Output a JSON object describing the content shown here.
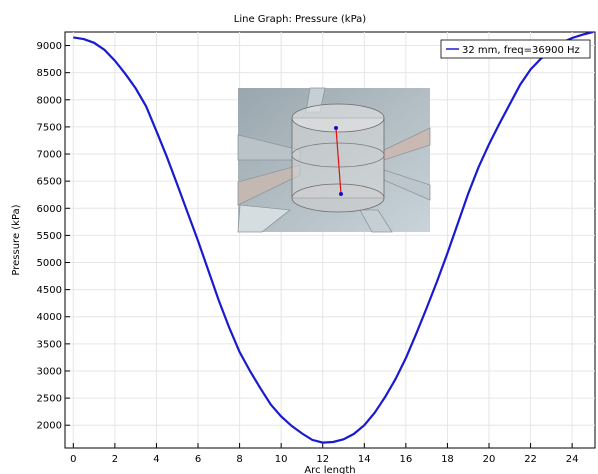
{
  "chart_data": {
    "type": "line",
    "title": "Line Graph: Pressure (kPa)",
    "xlabel": "Arc length",
    "ylabel": "Pressure (kPa)",
    "xlim": [
      -0.4,
      25.1
    ],
    "ylim": [
      1580,
      9250
    ],
    "x_ticks": [
      0,
      2,
      4,
      6,
      8,
      10,
      12,
      14,
      16,
      18,
      20,
      22,
      24
    ],
    "y_ticks": [
      2000,
      2500,
      3000,
      3500,
      4000,
      4500,
      5000,
      5500,
      6000,
      6500,
      7000,
      7500,
      8000,
      8500,
      9000
    ],
    "grid": true,
    "legend_position": "top-right",
    "series": [
      {
        "name": "32 mm, freq=36900 Hz",
        "color": "#1a1ad0",
        "x": [
          0,
          0.5,
          1,
          1.5,
          2,
          2.5,
          3,
          3.5,
          4,
          4.5,
          5,
          5.5,
          6,
          6.5,
          7,
          7.5,
          8,
          8.5,
          9,
          9.5,
          10,
          10.5,
          11,
          11.5,
          12,
          12.5,
          13,
          13.5,
          14,
          14.5,
          15,
          15.5,
          16,
          16.5,
          17,
          17.5,
          18,
          18.5,
          19,
          19.5,
          20,
          20.5,
          21,
          21.5,
          22,
          22.5,
          23,
          23.5,
          24,
          24.5,
          25
        ],
        "y": [
          9150,
          9120,
          9050,
          8920,
          8720,
          8480,
          8210,
          7880,
          7420,
          6950,
          6440,
          5920,
          5400,
          4850,
          4300,
          3800,
          3350,
          3000,
          2680,
          2380,
          2160,
          1990,
          1850,
          1730,
          1680,
          1690,
          1740,
          1840,
          2000,
          2230,
          2520,
          2850,
          3240,
          3690,
          4160,
          4650,
          5170,
          5720,
          6270,
          6760,
          7180,
          7560,
          7920,
          8280,
          8560,
          8760,
          8920,
          9050,
          9140,
          9200,
          9250
        ]
      }
    ],
    "inset": {
      "description_visible": false
    }
  }
}
